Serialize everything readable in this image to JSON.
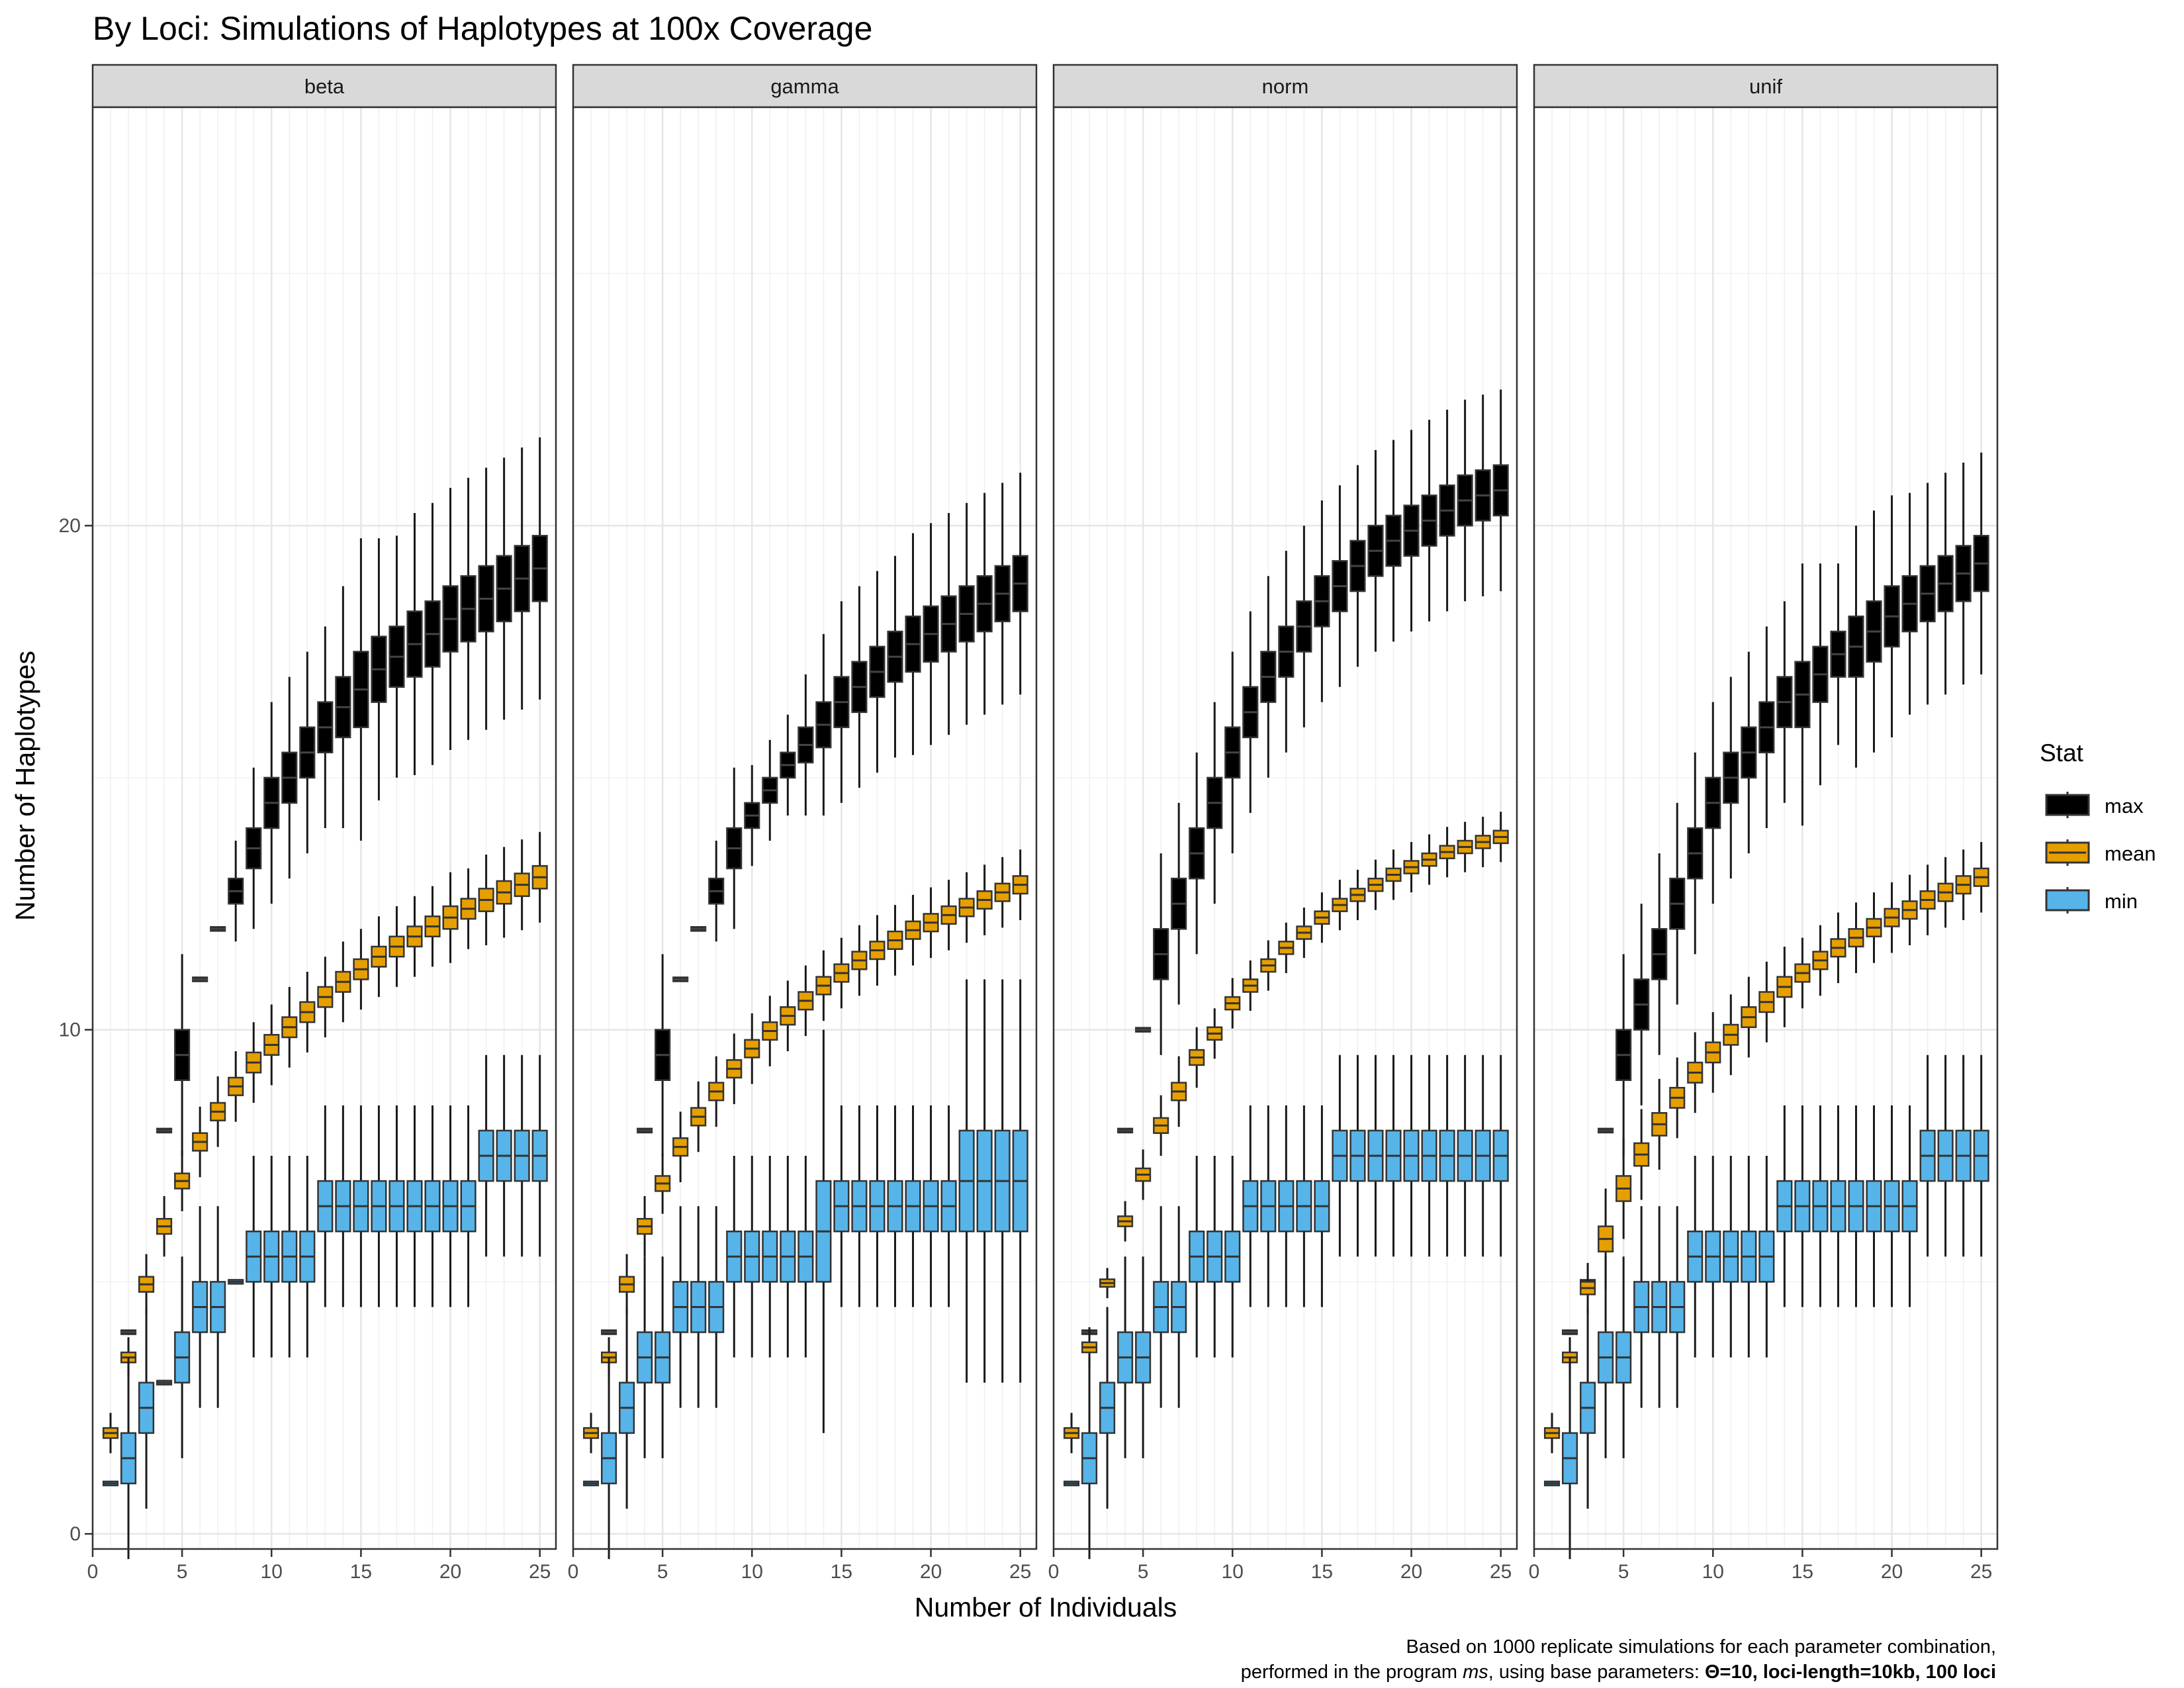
{
  "chart_data": {
    "type": "box",
    "title": "By Loci: Simulations of Haplotypes at 100x Coverage",
    "xlabel": "Number of Individuals",
    "ylabel": "Number of Haplotypes",
    "xlim": [
      0,
      25.9
    ],
    "ylim": [
      -0.3,
      28.3
    ],
    "x_ticks": [
      0,
      5,
      10,
      15,
      20,
      25
    ],
    "y_ticks": [
      0,
      10,
      20
    ],
    "x_grid_minor": true,
    "legend": {
      "title": "Stat",
      "position": "right",
      "entries": [
        "max",
        "mean",
        "min"
      ]
    },
    "series_colors": {
      "max": "#000000",
      "mean": "#E69F00",
      "min": "#56B4E9"
    },
    "panels": [
      {
        "name": "beta",
        "series": [
          {
            "name": "max",
            "q1": [
              2,
              4,
              5,
              8,
              10,
              11,
              12,
              12.5,
              13.2,
              14,
              14.5,
              15,
              15.5,
              15.8,
              16,
              16.5,
              16.8,
              17,
              17.2,
              17.5,
              17.7,
              17.9,
              18.1,
              18.3,
              18.5
            ],
            "q3": [
              2,
              4,
              5,
              8,
              9,
              11,
              12,
              13,
              14,
              15,
              15.5,
              16,
              16.5,
              17,
              17.5,
              17.8,
              18,
              18.3,
              18.5,
              18.8,
              19,
              19.2,
              19.4,
              19.6,
              19.8
            ]
          },
          {
            "name": "mean",
            "q1": [
              1.9,
              3.4,
              4.8,
              5.95,
              6.85,
              7.6,
              8.2,
              8.7,
              9.15,
              9.5,
              9.85,
              10.15,
              10.45,
              10.75,
              11,
              11.25,
              11.45,
              11.65,
              11.85,
              12,
              12.2,
              12.35,
              12.5,
              12.65,
              12.8
            ],
            "q3": [
              2.1,
              3.6,
              5.1,
              6.25,
              7.15,
              7.95,
              8.55,
              9.05,
              9.55,
              9.9,
              10.25,
              10.55,
              10.85,
              11.15,
              11.4,
              11.65,
              11.85,
              12.05,
              12.25,
              12.45,
              12.6,
              12.8,
              12.95,
              13.1,
              13.25
            ]
          },
          {
            "name": "min",
            "q1": [
              1,
              1,
              2,
              3,
              3,
              4,
              4,
              5,
              5,
              5,
              5,
              5,
              6,
              6,
              6,
              6,
              6,
              6,
              6,
              6,
              6,
              7,
              7,
              7,
              7
            ],
            "q3": [
              1,
              2,
              3,
              3,
              4,
              5,
              5,
              5,
              6,
              6,
              6,
              6,
              7,
              7,
              7,
              7,
              7,
              7,
              7,
              7,
              7,
              8,
              8,
              8,
              8
            ]
          }
        ]
      },
      {
        "name": "gamma",
        "series": [
          {
            "name": "max",
            "q1": [
              2,
              4,
              5,
              8,
              9,
              11,
              12,
              12.5,
              13.2,
              14,
              14.5,
              15,
              15.3,
              15.6,
              16,
              16.3,
              16.6,
              16.9,
              17.1,
              17.3,
              17.5,
              17.7,
              17.9,
              18.1,
              18.3
            ],
            "q3": [
              2,
              4,
              5,
              8,
              10,
              11,
              12,
              13,
              14,
              14.5,
              15,
              15.5,
              16,
              16.5,
              17,
              17.3,
              17.6,
              17.9,
              18.2,
              18.4,
              18.6,
              18.8,
              19,
              19.2,
              19.4
            ]
          },
          {
            "name": "mean",
            "q1": [
              1.9,
              3.4,
              4.8,
              5.95,
              6.8,
              7.5,
              8.1,
              8.6,
              9.05,
              9.45,
              9.8,
              10.1,
              10.4,
              10.7,
              10.95,
              11.2,
              11.4,
              11.6,
              11.8,
              11.95,
              12.1,
              12.25,
              12.4,
              12.55,
              12.7
            ],
            "q3": [
              2.1,
              3.6,
              5.1,
              6.25,
              7.1,
              7.85,
              8.45,
              8.95,
              9.4,
              9.8,
              10.15,
              10.45,
              10.75,
              11.05,
              11.3,
              11.55,
              11.75,
              11.95,
              12.15,
              12.3,
              12.45,
              12.6,
              12.75,
              12.9,
              13.05
            ]
          },
          {
            "name": "min",
            "q1": [
              1,
              1,
              2,
              3,
              3,
              4,
              4,
              4,
              5,
              5,
              5,
              5,
              5,
              5,
              6,
              6,
              6,
              6,
              6,
              6,
              6,
              6,
              6,
              6,
              6
            ],
            "q3": [
              1,
              2,
              3,
              4,
              4,
              5,
              5,
              5,
              6,
              6,
              6,
              6,
              6,
              7,
              7,
              7,
              7,
              7,
              7,
              7,
              7,
              8,
              8,
              8,
              8
            ]
          }
        ]
      },
      {
        "name": "norm",
        "series": [
          {
            "name": "max",
            "q1": [
              2,
              4,
              5,
              8,
              10,
              11,
              12,
              13,
              14,
              15,
              15.8,
              16.5,
              17,
              17.5,
              18,
              18.3,
              18.7,
              19,
              19.2,
              19.4,
              19.6,
              19.8,
              20,
              20.1,
              20.2
            ],
            "q3": [
              2,
              4,
              5,
              8,
              10,
              12,
              13,
              14,
              15,
              16,
              16.8,
              17.5,
              18,
              18.5,
              19,
              19.3,
              19.7,
              20,
              20.2,
              20.4,
              20.6,
              20.8,
              21,
              21.1,
              21.2
            ]
          },
          {
            "name": "mean",
            "q1": [
              1.9,
              3.6,
              4.9,
              6.1,
              7,
              7.95,
              8.6,
              9.3,
              9.8,
              10.4,
              10.75,
              11.15,
              11.5,
              11.8,
              12.1,
              12.35,
              12.55,
              12.75,
              12.95,
              13.1,
              13.25,
              13.4,
              13.5,
              13.6,
              13.7
            ],
            "q3": [
              2.1,
              3.8,
              5.05,
              6.3,
              7.25,
              8.25,
              8.95,
              9.6,
              10.05,
              10.65,
              11,
              11.4,
              11.75,
              12.05,
              12.35,
              12.6,
              12.8,
              13,
              13.2,
              13.35,
              13.5,
              13.65,
              13.75,
              13.85,
              13.95
            ]
          },
          {
            "name": "min",
            "q1": [
              1,
              1,
              2,
              3,
              3,
              4,
              4,
              5,
              5,
              5,
              6,
              6,
              6,
              6,
              6,
              7,
              7,
              7,
              7,
              7,
              7,
              7,
              7,
              7,
              7
            ],
            "q3": [
              1,
              2,
              3,
              4,
              4,
              5,
              5,
              6,
              6,
              6,
              7,
              7,
              7,
              7,
              7,
              8,
              8,
              8,
              8,
              8,
              8,
              8,
              8,
              8,
              8
            ]
          }
        ]
      },
      {
        "name": "unif",
        "series": [
          {
            "name": "max",
            "q1": [
              2,
              4,
              5,
              8,
              9,
              10,
              11,
              12,
              13,
              14,
              14.5,
              15,
              15.5,
              16,
              16,
              16.5,
              17,
              17,
              17.3,
              17.6,
              17.9,
              18.1,
              18.3,
              18.5,
              18.7
            ],
            "q3": [
              2,
              4,
              5,
              8,
              10,
              11,
              12,
              13,
              14,
              15,
              15.5,
              16,
              16.5,
              17,
              17.3,
              17.6,
              17.9,
              18.2,
              18.5,
              18.8,
              19,
              19.2,
              19.4,
              19.6,
              19.8
            ]
          },
          {
            "name": "mean",
            "q1": [
              1.9,
              3.4,
              4.75,
              5.6,
              6.6,
              7.3,
              7.9,
              8.45,
              8.95,
              9.35,
              9.7,
              10.05,
              10.35,
              10.65,
              10.95,
              11.2,
              11.45,
              11.65,
              11.85,
              12.05,
              12.2,
              12.4,
              12.55,
              12.7,
              12.85
            ],
            "q3": [
              2.1,
              3.6,
              5,
              6.1,
              7.1,
              7.75,
              8.35,
              8.85,
              9.35,
              9.75,
              10.1,
              10.45,
              10.75,
              11.05,
              11.3,
              11.55,
              11.8,
              12,
              12.2,
              12.4,
              12.55,
              12.75,
              12.9,
              13.05,
              13.2
            ]
          },
          {
            "name": "min",
            "q1": [
              1,
              1,
              2,
              3,
              3,
              4,
              4,
              4,
              5,
              5,
              5,
              5,
              5,
              6,
              6,
              6,
              6,
              6,
              6,
              6,
              6,
              7,
              7,
              7,
              7
            ],
            "q3": [
              1,
              2,
              3,
              4,
              4,
              5,
              5,
              5,
              6,
              6,
              6,
              6,
              6,
              7,
              7,
              7,
              7,
              7,
              7,
              7,
              7,
              8,
              8,
              8,
              8
            ]
          }
        ]
      }
    ]
  },
  "caption": {
    "line1": "Based on 1000 replicate simulations for each parameter combination,",
    "line2_prefix": "performed in the program ",
    "line2_program": "ms",
    "line2_middle": ", using base parameters: ",
    "line2_bold": "Θ=10, loci-length=10kb, 100 loci"
  }
}
